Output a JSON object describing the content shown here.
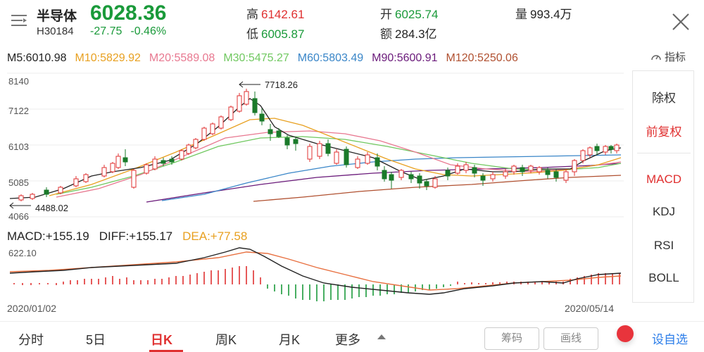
{
  "header": {
    "name": "半导体",
    "code": "H30184",
    "price": "6028.36",
    "change": "-27.75",
    "change_pct": "-0.46%",
    "high_label": "高",
    "high": "6142.61",
    "low_label": "低",
    "low": "6005.87",
    "open_label": "开",
    "open": "6025.74",
    "amount_label": "额",
    "amount": "284.3亿",
    "volume_label": "量",
    "volume": "993.4万"
  },
  "ma": {
    "m5": "M5:6010.98",
    "m10": "M10:5829.92",
    "m20": "M20:5589.08",
    "m30": "M30:5475.27",
    "m60": "M60:5803.49",
    "m90": "M90:5600.91",
    "m120": "M120:5250.06"
  },
  "indicator_label": "指标",
  "kchart": {
    "y_ticks": [
      "8140",
      "7122",
      "6103",
      "5085",
      "4066"
    ],
    "max_label": "7718.26",
    "min_label": "4488.02"
  },
  "macd": {
    "macd": "MACD:+155.19",
    "diff": "DIFF:+155.17",
    "dea": "DEA:+77.58",
    "top_label": "622.10"
  },
  "dates": {
    "start": "2020/01/02",
    "end": "2020/05/14"
  },
  "right_panel": {
    "items": [
      "除权",
      "前复权",
      "MACD",
      "KDJ",
      "RSI",
      "BOLL"
    ]
  },
  "tabs": {
    "items": [
      "分时",
      "5日",
      "日K",
      "周K",
      "月K",
      "更多"
    ],
    "chip": "筹码",
    "draw": "画线",
    "favorite": "设自选"
  },
  "colors": {
    "up": "#e03030",
    "down": "#1a9a3a",
    "m5": "#222222",
    "m10": "#e8a020",
    "m20": "#e87890",
    "m30": "#70c860",
    "m60": "#3a86c8",
    "m90": "#6a1a7a",
    "m120": "#b05030"
  }
}
